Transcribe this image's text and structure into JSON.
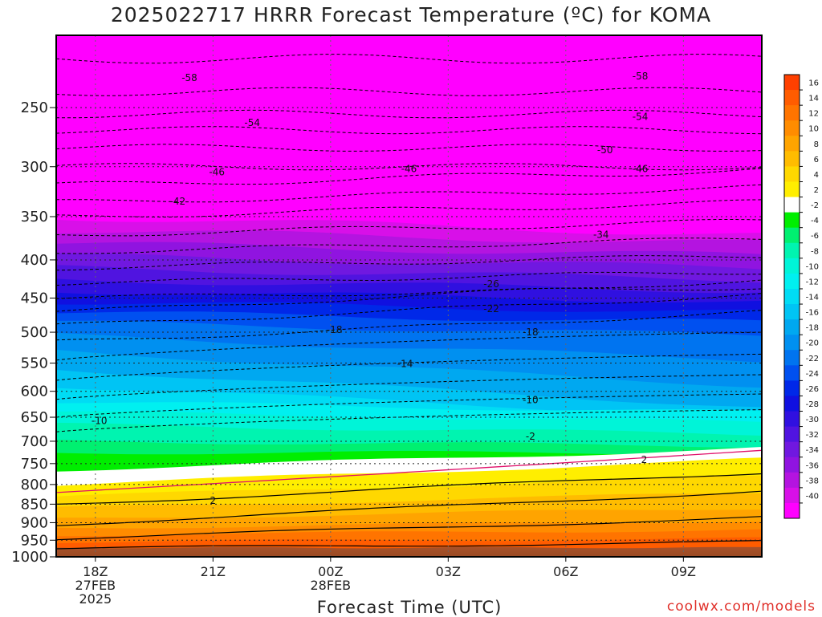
{
  "title": "2025022717 HRRR Forecast Temperature (ºC) for KOMA",
  "credit": "coolwx.com/models",
  "chart_data": {
    "type": "heatmap",
    "title": "2025022717 HRRR Forecast Temperature (ºC) for KOMA",
    "xlabel": "Forecast Time (UTC)",
    "ylabel": "",
    "xlim": [
      17,
      35
    ],
    "ylim": [
      1000,
      200
    ],
    "x_ticks": [
      {
        "x": 18,
        "lines": [
          "18Z",
          "27FEB",
          "2025"
        ]
      },
      {
        "x": 21,
        "lines": [
          "21Z"
        ]
      },
      {
        "x": 24,
        "lines": [
          "00Z",
          "28FEB"
        ]
      },
      {
        "x": 27,
        "lines": [
          "03Z"
        ]
      },
      {
        "x": 30,
        "lines": [
          "06Z"
        ]
      },
      {
        "x": 33,
        "lines": [
          "09Z"
        ]
      }
    ],
    "y_ticks": [
      250,
      300,
      350,
      400,
      450,
      500,
      550,
      600,
      650,
      700,
      750,
      800,
      850,
      900,
      950,
      1000
    ],
    "colorbar_labels": [
      "16",
      "14",
      "12",
      "10",
      "8",
      "6",
      "4",
      "2",
      "-2",
      "-4",
      "-6",
      "-8",
      "-10",
      "-12",
      "-14",
      "-16",
      "-18",
      "-20",
      "-22",
      "-24",
      "-26",
      "-28",
      "-30",
      "-32",
      "-34",
      "-36",
      "-38",
      "-40"
    ],
    "colorbar_colors": [
      "#ff4000",
      "#ff5c00",
      "#ff7400",
      "#ff8c00",
      "#ffa400",
      "#ffbc00",
      "#ffd800",
      "#ffee00",
      "#ffffff",
      "#00ee00",
      "#00f070",
      "#00f4b0",
      "#00f4d8",
      "#00f0f0",
      "#00dcf4",
      "#00c4f4",
      "#00a8f0",
      "#0090f0",
      "#0074f0",
      "#0050f0",
      "#0028e8",
      "#1010e0",
      "#3010e0",
      "#5014e0",
      "#7018e0",
      "#9014e0",
      "#b414e0",
      "#d810e8",
      "#ff00ff"
    ],
    "contour_labels": [
      {
        "value": "-58",
        "x": 20.4,
        "p": 228
      },
      {
        "value": "-58",
        "x": 31.9,
        "p": 227
      },
      {
        "value": "-54",
        "x": 22.0,
        "p": 262
      },
      {
        "value": "-54",
        "x": 31.9,
        "p": 257
      },
      {
        "value": "-50",
        "x": 31.0,
        "p": 285
      },
      {
        "value": "-46",
        "x": 21.1,
        "p": 305
      },
      {
        "value": "-46",
        "x": 26.0,
        "p": 302
      },
      {
        "value": "-46",
        "x": 31.9,
        "p": 302
      },
      {
        "value": "-42",
        "x": 20.1,
        "p": 334
      },
      {
        "value": "-34",
        "x": 30.9,
        "p": 370
      },
      {
        "value": "-26",
        "x": 28.1,
        "p": 431
      },
      {
        "value": "-22",
        "x": 28.1,
        "p": 465
      },
      {
        "value": "-18",
        "x": 24.1,
        "p": 496
      },
      {
        "value": "-18",
        "x": 29.1,
        "p": 500
      },
      {
        "value": "-14",
        "x": 25.9,
        "p": 551
      },
      {
        "value": "-10",
        "x": 18.1,
        "p": 657
      },
      {
        "value": "-10",
        "x": 29.1,
        "p": 616
      },
      {
        "value": "-2",
        "x": 29.1,
        "p": 690
      },
      {
        "value": "2",
        "x": 32.0,
        "p": 741
      },
      {
        "value": "2",
        "x": 21.0,
        "p": 841
      }
    ]
  }
}
